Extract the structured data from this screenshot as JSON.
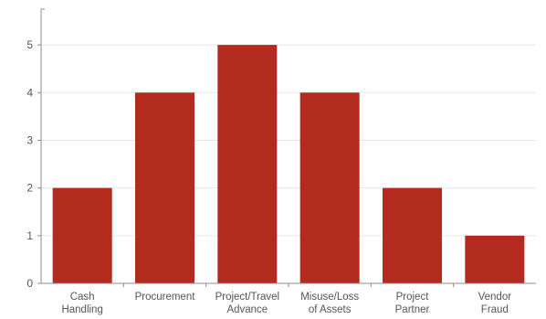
{
  "chart_data": {
    "type": "bar",
    "categories": [
      [
        "Cash",
        "Handling"
      ],
      [
        "Procurement"
      ],
      [
        "Project/Travel",
        "Advance"
      ],
      [
        "Misuse/Loss",
        "of Assets"
      ],
      [
        "Project",
        "Partner"
      ],
      [
        "Vendor",
        "Fraud"
      ]
    ],
    "values": [
      2,
      4,
      5,
      4,
      2,
      1
    ],
    "yticks": [
      "0",
      "1",
      "2",
      "3",
      "4",
      "5"
    ],
    "ylim": [
      0,
      5.75
    ],
    "grid": true,
    "bar_color": "#b22b1e",
    "title": "",
    "xlabel": "",
    "ylabel": ""
  }
}
